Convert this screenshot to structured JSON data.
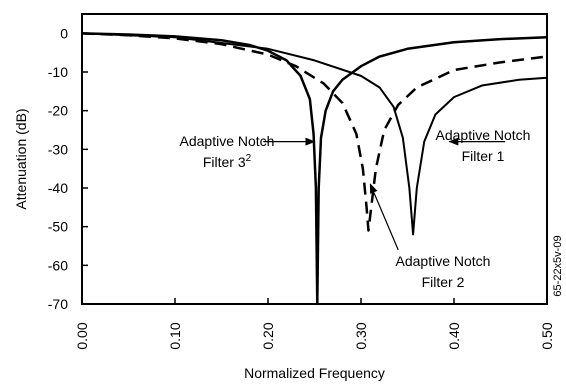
{
  "chart_data": {
    "type": "line",
    "xlabel": "Normalized Frequency",
    "ylabel": "Attenuation (dB)",
    "xlim": [
      0,
      0.5
    ],
    "ylim": [
      -70,
      5
    ],
    "x_ticks": [
      "0.00",
      "0.10",
      "0.20",
      "0.30",
      "0.40",
      "0.50"
    ],
    "y_ticks": [
      "0",
      "-10",
      "-20",
      "-30",
      "-40",
      "-50",
      "-60",
      "-70"
    ],
    "grid": false,
    "series": [
      {
        "style": "solid",
        "stroke_width": 2.5,
        "points": [
          [
            0.0,
            0
          ],
          [
            0.05,
            -0.3
          ],
          [
            0.1,
            -0.8
          ],
          [
            0.15,
            -1.8
          ],
          [
            0.18,
            -3
          ],
          [
            0.2,
            -4.5
          ],
          [
            0.22,
            -7
          ],
          [
            0.235,
            -11
          ],
          [
            0.245,
            -17
          ],
          [
            0.249,
            -26
          ],
          [
            0.2515,
            -40
          ],
          [
            0.253,
            -70
          ],
          [
            0.2545,
            -40
          ],
          [
            0.257,
            -27
          ],
          [
            0.262,
            -20
          ],
          [
            0.27,
            -15
          ],
          [
            0.28,
            -12
          ],
          [
            0.3,
            -8.5
          ],
          [
            0.32,
            -6
          ],
          [
            0.35,
            -4
          ],
          [
            0.4,
            -2.3
          ],
          [
            0.45,
            -1.5
          ],
          [
            0.5,
            -1.0
          ]
        ]
      },
      {
        "style": "dashed",
        "stroke_width": 2.5,
        "points": [
          [
            0.0,
            0
          ],
          [
            0.05,
            -0.5
          ],
          [
            0.1,
            -1.3
          ],
          [
            0.15,
            -2.8
          ],
          [
            0.2,
            -5.5
          ],
          [
            0.23,
            -8.5
          ],
          [
            0.26,
            -13
          ],
          [
            0.28,
            -18
          ],
          [
            0.295,
            -26
          ],
          [
            0.302,
            -35
          ],
          [
            0.306,
            -45
          ],
          [
            0.308,
            -51
          ],
          [
            0.311,
            -45
          ],
          [
            0.316,
            -35
          ],
          [
            0.325,
            -25
          ],
          [
            0.34,
            -18.5
          ],
          [
            0.36,
            -14
          ],
          [
            0.4,
            -9.5
          ],
          [
            0.45,
            -7.5
          ],
          [
            0.5,
            -6.0
          ]
        ]
      },
      {
        "style": "solid",
        "stroke_width": 2,
        "points": [
          [
            0.0,
            0
          ],
          [
            0.1,
            -1
          ],
          [
            0.2,
            -4
          ],
          [
            0.25,
            -7
          ],
          [
            0.3,
            -11
          ],
          [
            0.32,
            -14
          ],
          [
            0.335,
            -19
          ],
          [
            0.345,
            -27
          ],
          [
            0.352,
            -40
          ],
          [
            0.356,
            -52
          ],
          [
            0.36,
            -40
          ],
          [
            0.368,
            -28
          ],
          [
            0.38,
            -21
          ],
          [
            0.4,
            -16.5
          ],
          [
            0.43,
            -13.5
          ],
          [
            0.47,
            -12
          ],
          [
            0.5,
            -11.5
          ]
        ]
      }
    ],
    "annotations": [
      {
        "id": "anf3",
        "line1": "Adaptive Notch",
        "line2": "Filter 3",
        "sup": "2",
        "ax": 0.195,
        "ay": -28,
        "bx": 0.25,
        "by": -28
      },
      {
        "id": "anf1",
        "line1": "Adaptive Notch",
        "line2": "Filter 1",
        "ax": 0.455,
        "ay": -28,
        "bx": 0.395,
        "by": -28
      },
      {
        "id": "anf2",
        "line1": "Adaptive Notch",
        "line2": "Filter 2",
        "ax": 0.34,
        "ay": -56,
        "bx": 0.31,
        "by": -39
      }
    ],
    "side_code": "65-22x5v-09"
  }
}
